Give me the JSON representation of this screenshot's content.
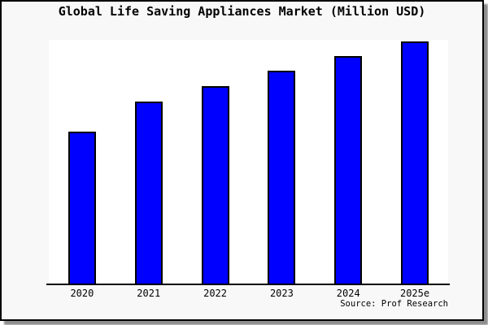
{
  "window": {
    "background_color": "#f8f8f8",
    "plot_background_color": "#ffffff",
    "frame_border_color": "#000000",
    "shadow_color": "#8e8e8e"
  },
  "chart_data": {
    "type": "bar",
    "title": "Global Life Saving Appliances Market (Million USD)",
    "categories": [
      "2020",
      "2021",
      "2022",
      "2023",
      "2024",
      "2025e"
    ],
    "values": [
      62.3,
      74.7,
      81.0,
      87.3,
      93.3,
      99.3
    ],
    "values_note": "No y-axis tick labels are shown in the image; values are relative bar heights as percent of plot height (tallest bar = 99.3)",
    "xlabel": "",
    "ylabel": "",
    "ylim": [
      0,
      100
    ],
    "grid": false,
    "legend": false,
    "bar_color": "#0000ff",
    "bar_border_color": "#000000",
    "source": "Source: Prof Research"
  }
}
